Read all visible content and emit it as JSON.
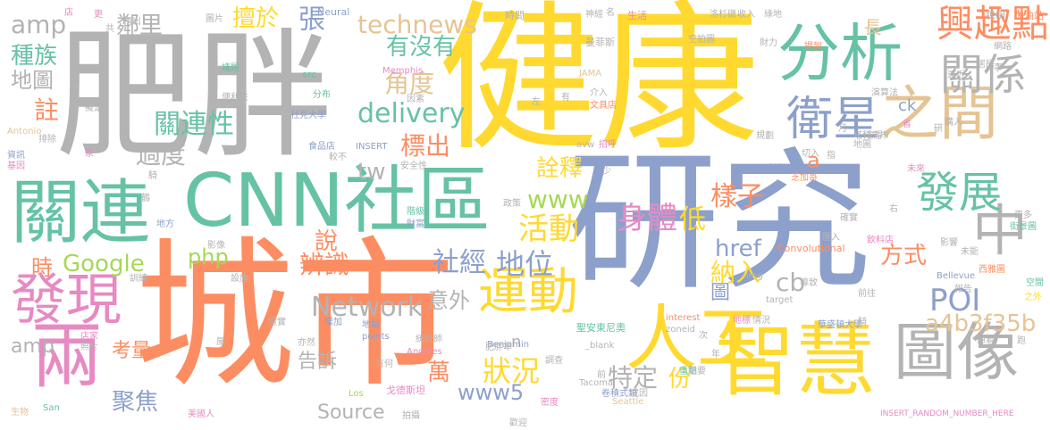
{
  "colors": {
    "gray": "#b3b3b3",
    "yellow": "#ffd92f",
    "orange": "#fc8d62",
    "blue": "#8da0cb",
    "green": "#66c2a5",
    "pink": "#e78ac3",
    "lime": "#a6d854",
    "tan": "#e5c494"
  },
  "words": [
    {
      "t": "肥胖",
      "c": "gray"
    },
    {
      "t": "健康",
      "c": "yellow"
    },
    {
      "t": "研究",
      "c": "blue"
    },
    {
      "t": "城市",
      "c": "orange"
    },
    {
      "t": "CNN社區",
      "c": "green"
    },
    {
      "t": "智慧",
      "c": "yellow"
    },
    {
      "t": "人工",
      "c": "yellow"
    },
    {
      "t": "分析",
      "c": "green"
    },
    {
      "t": "之間",
      "c": "tan"
    },
    {
      "t": "關連",
      "c": "green"
    },
    {
      "t": "發現",
      "c": "pink"
    },
    {
      "t": "圖像",
      "c": "gray"
    },
    {
      "t": "中",
      "c": "gray"
    },
    {
      "t": "兩",
      "c": "pink"
    },
    {
      "t": "衛星",
      "c": "blue"
    },
    {
      "t": "興趣點",
      "c": "orange"
    },
    {
      "t": "關係",
      "c": "gray"
    },
    {
      "t": "發展",
      "c": "green"
    },
    {
      "t": "運動",
      "c": "yellow"
    },
    {
      "t": "technews",
      "c": "tan"
    },
    {
      "t": "delivery",
      "c": "green"
    },
    {
      "t": "角度",
      "c": "tan"
    },
    {
      "t": "有沒有",
      "c": "green"
    },
    {
      "t": "張",
      "c": "blue"
    },
    {
      "t": "擅於",
      "c": "yellow"
    },
    {
      "t": "關連性",
      "c": "green"
    },
    {
      "t": "過度",
      "c": "gray"
    },
    {
      "t": "鄰里",
      "c": "gray"
    },
    {
      "t": "amp",
      "c": "gray"
    },
    {
      "t": "種族",
      "c": "green"
    },
    {
      "t": "地圖",
      "c": "gray"
    },
    {
      "t": "註",
      "c": "orange"
    },
    {
      "t": "標出",
      "c": "orange"
    },
    {
      "t": "tw",
      "c": "gray"
    },
    {
      "t": "www",
      "c": "lime"
    },
    {
      "t": "詮釋",
      "c": "yellow"
    },
    {
      "t": "說",
      "c": "orange"
    },
    {
      "t": "活動",
      "c": "yellow"
    },
    {
      "t": "身體",
      "c": "pink"
    },
    {
      "t": "樣子",
      "c": "orange"
    },
    {
      "t": "低",
      "c": "yellow"
    },
    {
      "t": "href",
      "c": "blue"
    },
    {
      "t": "Google",
      "c": "lime"
    },
    {
      "t": "php",
      "c": "lime"
    },
    {
      "t": "時",
      "c": "orange"
    },
    {
      "t": "辨識",
      "c": "orange"
    },
    {
      "t": "社經",
      "c": "blue"
    },
    {
      "t": "地位",
      "c": "blue"
    },
    {
      "t": "狀況",
      "c": "yellow"
    },
    {
      "t": "Network",
      "c": "gray"
    },
    {
      "t": "意外",
      "c": "gray"
    },
    {
      "t": "a4b3f35b",
      "c": "tan"
    },
    {
      "t": "POI",
      "c": "blue"
    },
    {
      "t": "納入",
      "c": "yellow"
    },
    {
      "t": "方式",
      "c": "orange"
    },
    {
      "t": "cb",
      "c": "gray"
    },
    {
      "t": "a",
      "c": "orange"
    },
    {
      "t": "amp",
      "c": "gray"
    },
    {
      "t": "考量",
      "c": "orange"
    },
    {
      "t": "告訴",
      "c": "gray"
    },
    {
      "t": "萬",
      "c": "orange"
    },
    {
      "t": "特定",
      "c": "gray"
    },
    {
      "t": "份",
      "c": "yellow"
    },
    {
      "t": "www5",
      "c": "blue"
    },
    {
      "t": "Source",
      "c": "gray"
    },
    {
      "t": "聚焦",
      "c": "blue"
    },
    {
      "t": "n",
      "c": "gray"
    },
    {
      "t": "圖",
      "c": "blue"
    },
    {
      "t": "長",
      "c": "tan"
    },
    {
      "t": "ck",
      "c": "blue"
    },
    {
      "t": "Neural",
      "c": "blue"
    },
    {
      "t": "時間",
      "c": "gray"
    },
    {
      "t": "名",
      "c": "gray"
    },
    {
      "t": "生活",
      "c": "pink"
    },
    {
      "t": "加油站",
      "c": "orange"
    },
    {
      "t": "聰明",
      "c": "gray"
    },
    {
      "t": "曼菲斯",
      "c": "gray"
    },
    {
      "t": "Memphis",
      "c": "pink"
    },
    {
      "t": "JAMA",
      "c": "tan"
    },
    {
      "t": "src",
      "c": "green"
    },
    {
      "t": "分布",
      "c": "green"
    },
    {
      "t": "社克大學",
      "c": "blue"
    },
    {
      "t": "便利性",
      "c": "gray"
    },
    {
      "t": "議題",
      "c": "green"
    },
    {
      "t": "Antonio",
      "c": "tan"
    },
    {
      "t": "資訊",
      "c": "blue"
    },
    {
      "t": "基因",
      "c": "pink"
    },
    {
      "t": "家",
      "c": "pink"
    },
    {
      "t": "INSERT",
      "c": "blue"
    },
    {
      "t": "安全性",
      "c": "gray"
    },
    {
      "t": "avw",
      "c": "gray"
    },
    {
      "t": "招呼",
      "c": "pink"
    },
    {
      "t": "規劃",
      "c": "gray"
    },
    {
      "t": "塔科馬市",
      "c": "gray"
    },
    {
      "t": "芝加哥",
      "c": "orange"
    },
    {
      "t": "特徵",
      "c": "blue"
    },
    {
      "t": "未來",
      "c": "pink"
    },
    {
      "t": "Convolutional",
      "c": "orange"
    },
    {
      "t": "影響",
      "c": "gray"
    },
    {
      "t": "未能",
      "c": "gray"
    },
    {
      "t": "飲料店",
      "c": "pink"
    },
    {
      "t": "西雅圖",
      "c": "orange"
    },
    {
      "t": "Bellevue",
      "c": "blue"
    },
    {
      "t": "target",
      "c": "gray"
    },
    {
      "t": "報告",
      "c": "gray"
    },
    {
      "t": "地標",
      "c": "pink"
    },
    {
      "t": "情況",
      "c": "gray"
    },
    {
      "t": "華盛頓大學",
      "c": "blue"
    },
    {
      "t": "zoneid",
      "c": "gray"
    },
    {
      "t": "interest",
      "c": "orange"
    },
    {
      "t": "聖安東尼奧",
      "c": "green"
    },
    {
      "t": "重點",
      "c": "green"
    },
    {
      "t": "卷積式類",
      "c": "blue"
    },
    {
      "t": "Tacoma",
      "c": "gray"
    },
    {
      "t": "戈德斯坦",
      "c": "pink"
    },
    {
      "t": "Los",
      "c": "lime"
    },
    {
      "t": "Angeles",
      "c": "pink"
    },
    {
      "t": "Benjamin",
      "c": "blue"
    },
    {
      "t": "_blank",
      "c": "gray"
    },
    {
      "t": "統計師",
      "c": "gray"
    },
    {
      "t": "points",
      "c": "blue"
    },
    {
      "t": "地點",
      "c": "blue"
    },
    {
      "t": "店家",
      "c": "pink"
    },
    {
      "t": "照片",
      "c": "gray"
    },
    {
      "t": "生物",
      "c": "tan"
    },
    {
      "t": "San",
      "c": "green"
    },
    {
      "t": "美國人",
      "c": "pink"
    },
    {
      "t": "密度",
      "c": "pink"
    },
    {
      "t": "INSERT_RANDOM_NUMBER_HERE",
      "c": "pink"
    },
    {
      "t": "Seattle",
      "c": "tan"
    },
    {
      "t": "成因",
      "c": "gray"
    },
    {
      "t": "拍攝",
      "c": "gray"
    },
    {
      "t": "增加",
      "c": "blue"
    },
    {
      "t": "證實",
      "c": "gray"
    },
    {
      "t": "影像",
      "c": "gray"
    },
    {
      "t": "地方",
      "c": "blue"
    },
    {
      "t": "訓練",
      "c": "gray"
    },
    {
      "t": "設施",
      "c": "gray"
    },
    {
      "t": "肥胖率",
      "c": "gray"
    },
    {
      "t": "階級",
      "c": "green"
    },
    {
      "t": "財富",
      "c": "blue"
    },
    {
      "t": "政策",
      "c": "gray"
    },
    {
      "t": "食品店",
      "c": "blue"
    },
    {
      "t": "較不",
      "c": "gray"
    },
    {
      "t": "文具店",
      "c": "orange"
    },
    {
      "t": "因素",
      "c": "gray"
    },
    {
      "t": "介入",
      "c": "gray"
    },
    {
      "t": "空拍圖",
      "c": "gray"
    },
    {
      "t": "收入",
      "c": "gray"
    },
    {
      "t": "綠地",
      "c": "gray"
    },
    {
      "t": "財力",
      "c": "gray"
    },
    {
      "t": "提到",
      "c": "orange"
    },
    {
      "t": "演算法",
      "c": "gray"
    },
    {
      "t": "網路",
      "c": "gray"
    },
    {
      "t": "街景圖",
      "c": "green"
    },
    {
      "t": "確實",
      "c": "gray"
    },
    {
      "t": "導致",
      "c": "gray"
    },
    {
      "t": "前往",
      "c": "gray"
    },
    {
      "t": "空間",
      "c": "green"
    },
    {
      "t": "跑",
      "c": "gray"
    },
    {
      "t": "更多",
      "c": "gray"
    },
    {
      "t": "之外",
      "c": "yellow"
    },
    {
      "t": "騎",
      "c": "gray"
    },
    {
      "t": "匯入",
      "c": "gray"
    },
    {
      "t": "更",
      "c": "pink"
    },
    {
      "t": "指出",
      "c": "gray"
    },
    {
      "t": "圖片",
      "c": "gray"
    },
    {
      "t": "店",
      "c": "pink"
    },
    {
      "t": "共",
      "c": "gray"
    },
    {
      "t": "事",
      "c": "gray"
    },
    {
      "t": "省",
      "c": "pink"
    },
    {
      "t": "指",
      "c": "gray"
    },
    {
      "t": "月",
      "c": "gray"
    },
    {
      "t": "研",
      "c": "gray"
    },
    {
      "t": "左",
      "c": "gray"
    },
    {
      "t": "少",
      "c": "gray"
    },
    {
      "t": "前",
      "c": "gray"
    },
    {
      "t": "年",
      "c": "gray"
    },
    {
      "t": "次",
      "c": "gray"
    },
    {
      "t": "右",
      "c": "gray"
    },
    {
      "t": "鶴",
      "c": "gray"
    },
    {
      "t": "騎",
      "c": "gray"
    },
    {
      "t": "屋",
      "c": "gray"
    },
    {
      "t": "擬定",
      "c": "gray"
    },
    {
      "t": "排除",
      "c": "gray"
    },
    {
      "t": "切入",
      "c": "gray"
    },
    {
      "t": "洛杉磯",
      "c": "gray"
    },
    {
      "t": "神經",
      "c": "gray"
    },
    {
      "t": "非得",
      "c": "gray"
    },
    {
      "t": "有",
      "c": "gray"
    },
    {
      "t": "想要",
      "c": "gray"
    },
    {
      "t": "購入",
      "c": "gray"
    },
    {
      "t": "調查",
      "c": "gray"
    },
    {
      "t": "居民",
      "c": "gray"
    },
    {
      "t": "想看",
      "c": "gray"
    },
    {
      "t": "有何",
      "c": "gray"
    },
    {
      "t": "亦然",
      "c": "gray"
    },
    {
      "t": "地圖",
      "c": "gray"
    },
    {
      "t": "img",
      "c": "gray"
    },
    {
      "t": "遠近",
      "c": "gray"
    },
    {
      "t": "歡迎",
      "c": "gray"
    }
  ]
}
